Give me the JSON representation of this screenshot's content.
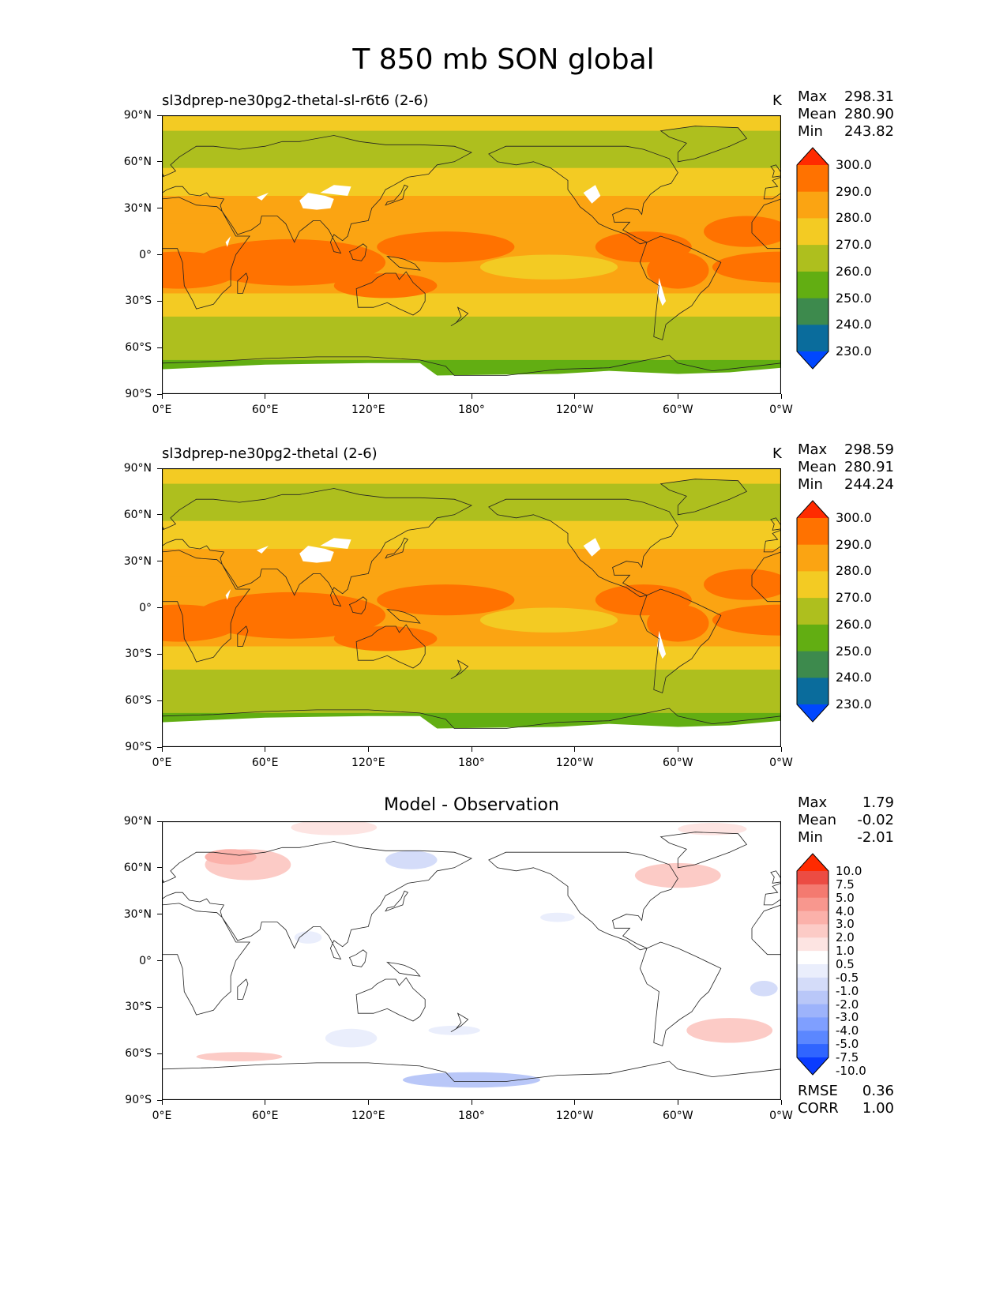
{
  "title": "T 850 mb SON global",
  "panels": [
    {
      "title": "sl3dprep-ne30pg2-thetal-sl-r6t6 (2-6)",
      "units": "K",
      "stats": [
        [
          "Max",
          "298.31"
        ],
        [
          "Mean",
          "280.90"
        ],
        [
          "Min",
          "243.82"
        ]
      ],
      "colorbar_labels": [
        "300.0",
        "290.0",
        "280.0",
        "270.0",
        "260.0",
        "250.0",
        "240.0",
        "230.0"
      ]
    },
    {
      "title": "sl3dprep-ne30pg2-thetal (2-6)",
      "units": "K",
      "stats": [
        [
          "Max",
          "298.59"
        ],
        [
          "Mean",
          "280.91"
        ],
        [
          "Min",
          "244.24"
        ]
      ],
      "colorbar_labels": [
        "300.0",
        "290.0",
        "280.0",
        "270.0",
        "260.0",
        "250.0",
        "240.0",
        "230.0"
      ]
    },
    {
      "title": "Model - Observation",
      "units": "",
      "stats": [
        [
          "Max",
          "1.79"
        ],
        [
          "Mean",
          "-0.02"
        ],
        [
          "Min",
          "-2.01"
        ]
      ],
      "colorbar_labels": [
        "10.0",
        "7.5",
        "5.0",
        "4.0",
        "3.0",
        "2.0",
        "1.0",
        "0.5",
        "-0.5",
        "-1.0",
        "-2.0",
        "-3.0",
        "-4.0",
        "-5.0",
        "-7.5",
        "-10.0"
      ],
      "metrics": [
        [
          "RMSE",
          "0.36"
        ],
        [
          "CORR",
          "1.00"
        ]
      ]
    }
  ],
  "axes": {
    "x_ticks": [
      "0°E",
      "60°E",
      "120°E",
      "180°",
      "120°W",
      "60°W",
      "0°W"
    ],
    "y_ticks": [
      "90°N",
      "60°N",
      "30°N",
      "0°",
      "30°S",
      "60°S",
      "90°S"
    ]
  },
  "colors": {
    "field": [
      "#0047ff",
      "#0a6c9c",
      "#3d8a4d",
      "#62ae12",
      "#aebf1e",
      "#f3cb23",
      "#fba412",
      "#ff7200",
      "#ff2b00"
    ],
    "diff": [
      "#0a3cff",
      "#3065ff",
      "#5b87ff",
      "#7f9fff",
      "#9db3fb",
      "#b9c7f8",
      "#d4dcf9",
      "#eaeefc",
      "#ffffff",
      "#fde4e2",
      "#fccbc6",
      "#fbb1aa",
      "#f8978e",
      "#f47a70",
      "#ec4c43",
      "#ff2a00"
    ]
  }
}
